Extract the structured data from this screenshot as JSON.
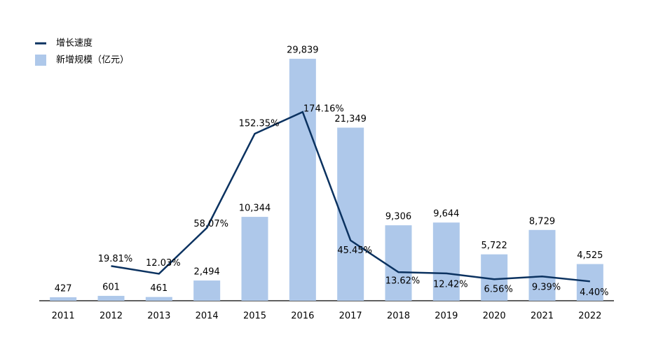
{
  "chart_data": {
    "type": "bar-line",
    "categories": [
      "2011",
      "2012",
      "2013",
      "2014",
      "2015",
      "2016",
      "2017",
      "2018",
      "2019",
      "2020",
      "2021",
      "2022"
    ],
    "series": [
      {
        "name": "增长速度",
        "type": "line",
        "axis": "y2",
        "color": "#0b3260",
        "values": [
          null,
          19.81,
          12.03,
          58.07,
          152.35,
          174.16,
          45.45,
          13.62,
          12.42,
          6.56,
          9.39,
          4.4
        ],
        "value_labels": [
          null,
          "19.81%",
          "12.03%",
          "58.07%",
          "152.35%",
          "174.16%",
          "45.45%",
          "13.62%",
          "12.42%",
          "6.56%",
          "9.39%",
          "4.40%"
        ]
      },
      {
        "name": "新增规模（亿元）",
        "type": "bar",
        "color": "#aec8ea",
        "values": [
          427,
          601,
          461,
          2494,
          10344,
          29839,
          21349,
          9306,
          9644,
          5722,
          8729,
          4525
        ],
        "value_labels": [
          "427",
          "601",
          "461",
          "2,494",
          "10,344",
          "29,839",
          "21,349",
          "9,306",
          "9,644",
          "5,722",
          "8,729",
          "4,525"
        ]
      }
    ],
    "ylim": [
      0,
      32000
    ],
    "y2lim": [
      -15,
      245
    ],
    "legend": "top-left"
  }
}
